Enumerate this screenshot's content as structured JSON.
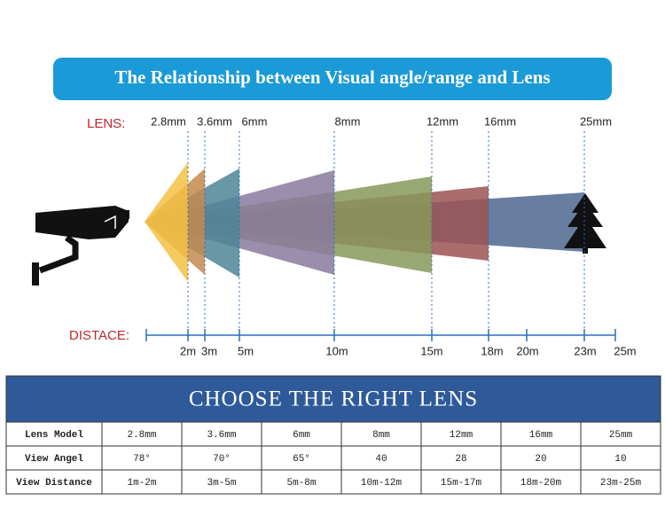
{
  "header": {
    "title": "The Relationship between Visual angle/range and Lens"
  },
  "diagram": {
    "lens_label": "LENS:",
    "lenses": [
      "2.8mm",
      "3.6mm",
      "6mm",
      "8mm",
      "12mm",
      "16mm",
      "25mm"
    ],
    "distance_label": "DISTACE:",
    "distances": [
      "2m",
      "3m",
      "5m",
      "10m",
      "15m",
      "18m",
      "20m",
      "23m",
      "25m"
    ]
  },
  "table": {
    "title": "CHOOSE THE RIGHT LENS",
    "rows": [
      [
        "Lens Model",
        "2.8mm",
        "3.6mm",
        "6mm",
        "8mm",
        "12mm",
        "16mm",
        "25mm"
      ],
      [
        "View Angel",
        "78°",
        "70°",
        "65°",
        "40",
        "28",
        "20",
        "10"
      ],
      [
        "View Distance",
        "1m-2m",
        "3m-5m",
        "5m-8m",
        "10m-12m",
        "15m-17m",
        "18m-20m",
        "23m-25m"
      ]
    ]
  }
}
